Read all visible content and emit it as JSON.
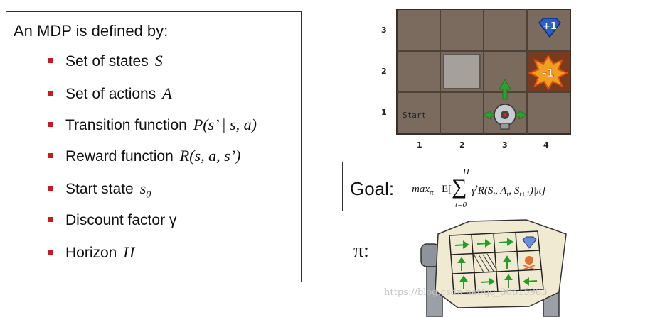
{
  "mdp": {
    "title": "An MDP is defined by:",
    "items": [
      {
        "label": "Set of states",
        "symbol": "S"
      },
      {
        "label": "Set of actions",
        "symbol": "A"
      },
      {
        "label": "Transition function",
        "symbol": "P(s’ | s, a)"
      },
      {
        "label": "Reward function",
        "symbol": "R(s, a, s’)"
      },
      {
        "label": "Start state",
        "symbol": "s",
        "sub": "0"
      },
      {
        "label": "Discount factor γ",
        "symbol": ""
      },
      {
        "label": "Horizon",
        "symbol": "H"
      }
    ],
    "bullet_color": "#d01818"
  },
  "gridworld": {
    "row_labels": [
      "3",
      "2",
      "1"
    ],
    "col_labels": [
      "1",
      "2",
      "3",
      "4"
    ],
    "start_label": "Start",
    "plus_reward": "+1",
    "minus_reward": "-1"
  },
  "goal": {
    "label": "Goal:",
    "sum_upper": "H",
    "sum_lower": "t=0"
  },
  "policy": {
    "label": "π:"
  },
  "watermark": "https://blog.csdn.net/qq_30615903"
}
